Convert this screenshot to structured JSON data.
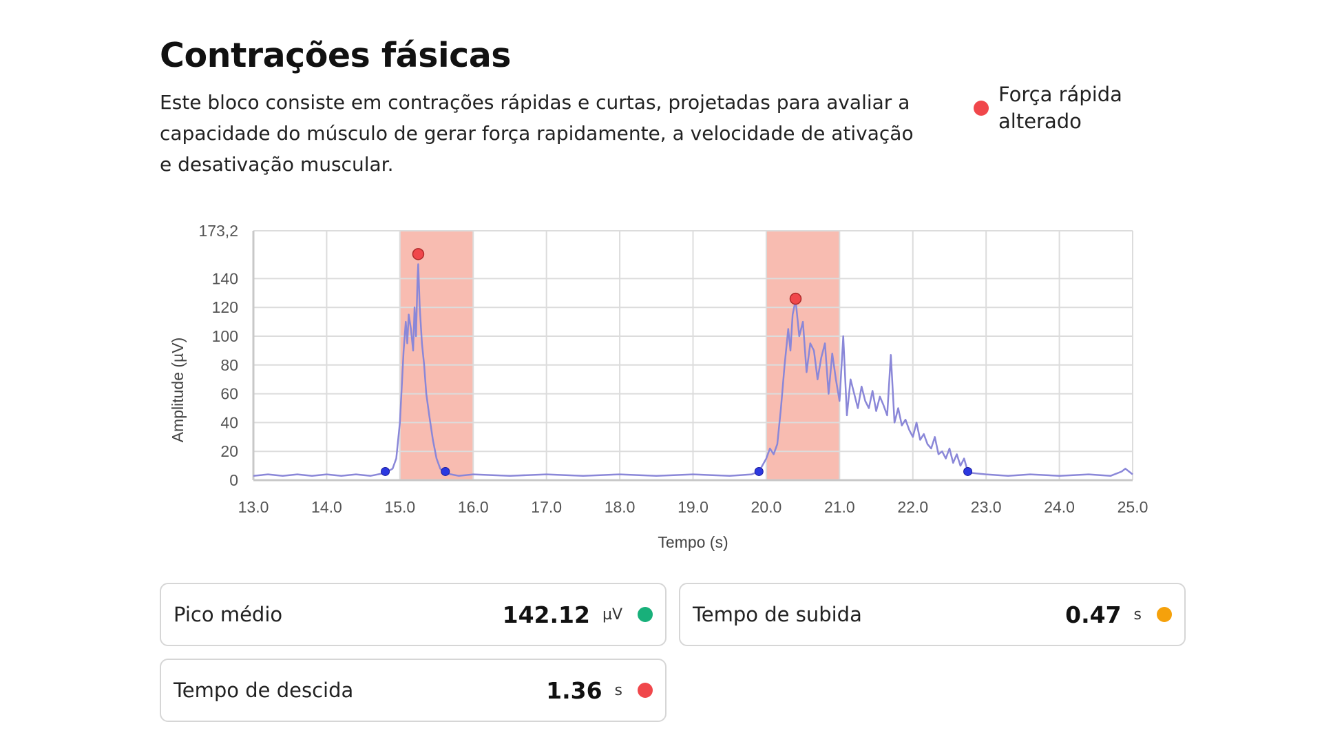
{
  "header": {
    "title": "Contrações fásicas",
    "description": "Este bloco consiste em contrações rápidas e curtas, projetadas para avaliar a capacidade do músculo de gerar força rapidamente, a velocidade de ativação e desativação muscular."
  },
  "legend": {
    "label": "Força rápida alterado",
    "color": "#f0474b"
  },
  "metrics": {
    "pico": {
      "label": "Pico médio",
      "value": "142.12",
      "unit": "µV",
      "status_color": "#18b07a"
    },
    "subida": {
      "label": "Tempo de subida",
      "value": "0.47",
      "unit": "s",
      "status_color": "#f5a10b"
    },
    "descida": {
      "label": "Tempo de descida",
      "value": "1.36",
      "unit": "s",
      "status_color": "#f0474b"
    }
  },
  "chart_data": {
    "type": "line",
    "xlabel": "Tempo (s)",
    "ylabel": "Amplitude (µV)",
    "xlim": [
      13.0,
      25.0
    ],
    "ylim": [
      0,
      173.2
    ],
    "x_ticks": [
      "13.0",
      "14.0",
      "15.0",
      "16.0",
      "17.0",
      "18.0",
      "19.0",
      "20.0",
      "21.0",
      "22.0",
      "23.0",
      "24.0",
      "25.0"
    ],
    "y_ticks": [
      "0",
      "20",
      "40",
      "60",
      "80",
      "100",
      "120",
      "140",
      "173,2"
    ],
    "grid": true,
    "line_color": "#8a87d8",
    "highlight_color": "#f6a597",
    "highlight_regions": [
      [
        15.0,
        16.0
      ],
      [
        20.0,
        21.0
      ]
    ],
    "peak_markers": [
      {
        "x": 15.25,
        "y": 157
      },
      {
        "x": 20.4,
        "y": 126
      }
    ],
    "onset_markers": [
      {
        "x": 14.8,
        "y": 6
      },
      {
        "x": 15.62,
        "y": 6
      },
      {
        "x": 19.9,
        "y": 6
      },
      {
        "x": 22.75,
        "y": 6
      }
    ],
    "series": [
      {
        "x": [
          13.0,
          13.2,
          13.4,
          13.6,
          13.8,
          14.0,
          14.2,
          14.4,
          14.6,
          14.8,
          14.9,
          14.95,
          15.0,
          15.05,
          15.08,
          15.1,
          15.12,
          15.15,
          15.18,
          15.2,
          15.22,
          15.24,
          15.25,
          15.27,
          15.3,
          15.33,
          15.36,
          15.4,
          15.45,
          15.5,
          15.55,
          15.6,
          15.7,
          15.8,
          16.0,
          16.5,
          17.0,
          17.5,
          18.0,
          18.5,
          19.0,
          19.5,
          19.8,
          19.9,
          20.0,
          20.05,
          20.1,
          20.15,
          20.2,
          20.25,
          20.3,
          20.33,
          20.36,
          20.4,
          20.45,
          20.5,
          20.55,
          20.6,
          20.65,
          20.7,
          20.75,
          20.8,
          20.85,
          20.9,
          20.95,
          21.0,
          21.05,
          21.1,
          21.15,
          21.2,
          21.25,
          21.3,
          21.35,
          21.4,
          21.45,
          21.5,
          21.55,
          21.6,
          21.65,
          21.7,
          21.75,
          21.8,
          21.85,
          21.9,
          21.95,
          22.0,
          22.05,
          22.1,
          22.15,
          22.2,
          22.25,
          22.3,
          22.35,
          22.4,
          22.45,
          22.5,
          22.55,
          22.6,
          22.65,
          22.7,
          22.75,
          22.8,
          23.0,
          23.3,
          23.6,
          24.0,
          24.4,
          24.7,
          24.85,
          24.9,
          25.0
        ],
        "y": [
          3,
          4,
          3,
          4,
          3,
          4,
          3,
          4,
          3,
          5,
          8,
          15,
          40,
          90,
          110,
          95,
          115,
          105,
          90,
          120,
          100,
          140,
          150,
          120,
          95,
          80,
          60,
          45,
          28,
          15,
          8,
          5,
          4,
          3,
          4,
          3,
          4,
          3,
          4,
          3,
          4,
          3,
          4,
          6,
          15,
          22,
          18,
          25,
          50,
          80,
          105,
          90,
          115,
          125,
          100,
          110,
          75,
          95,
          90,
          70,
          85,
          95,
          60,
          88,
          70,
          55,
          100,
          45,
          70,
          60,
          50,
          65,
          55,
          50,
          62,
          48,
          58,
          52,
          45,
          87,
          40,
          50,
          38,
          42,
          35,
          30,
          40,
          28,
          32,
          25,
          22,
          30,
          18,
          20,
          15,
          22,
          12,
          18,
          10,
          15,
          6,
          5,
          4,
          3,
          4,
          3,
          4,
          3,
          6,
          8,
          4
        ]
      }
    ]
  }
}
